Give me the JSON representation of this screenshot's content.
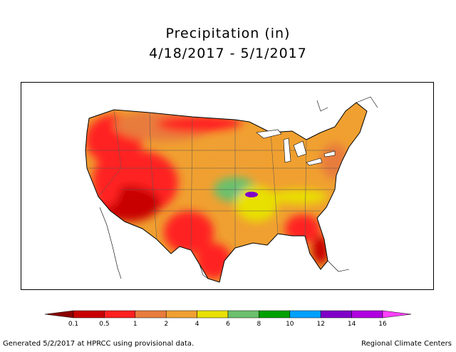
{
  "title": {
    "line1": "Precipitation (in)",
    "line2": "4/18/2017 - 5/1/2017"
  },
  "legend": {
    "labels": [
      "0.1",
      "0.5",
      "1",
      "2",
      "4",
      "6",
      "8",
      "10",
      "12",
      "14",
      "16"
    ],
    "colors": [
      "#8b0000",
      "#c80000",
      "#ff2020",
      "#e87c3c",
      "#f0a030",
      "#e8e000",
      "#6cc06c",
      "#00a000",
      "#00a0ff",
      "#8000c8",
      "#b000e0",
      "#ff40ff"
    ]
  },
  "footer": {
    "left": "Generated 5/2/2017 at HPRCC using provisional data.",
    "right": "Regional Climate Centers"
  }
}
